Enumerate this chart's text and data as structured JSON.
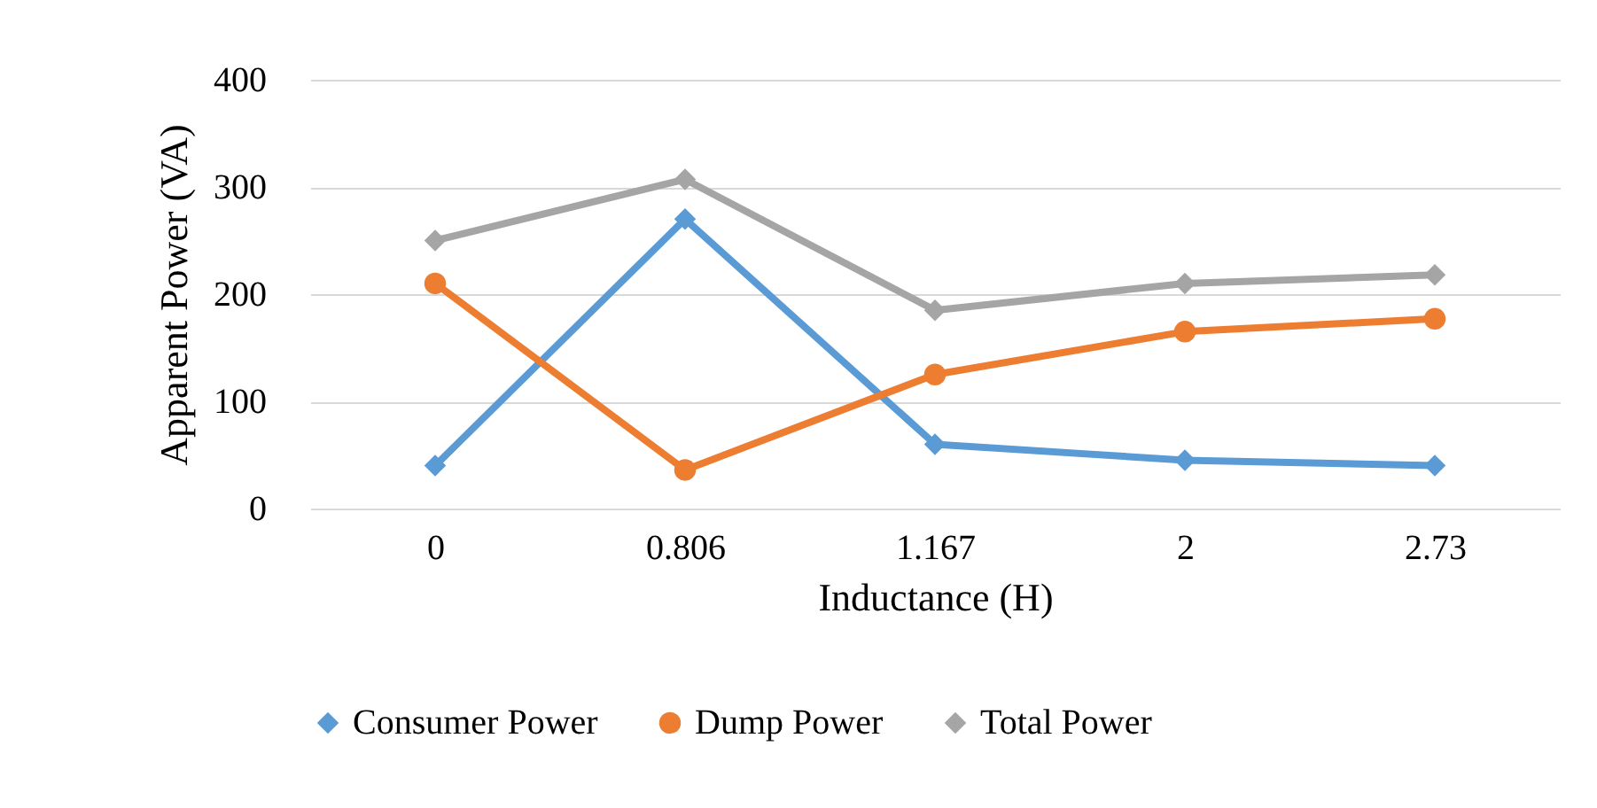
{
  "chart_data": {
    "type": "line",
    "xlabel": "Inductance (H)",
    "ylabel": "Apparent Power (VA)",
    "categories": [
      "0",
      "0.806",
      "1.167",
      "2",
      "2.73"
    ],
    "series": [
      {
        "name": "Consumer Power",
        "color": "#5b9bd5",
        "marker": "diamond",
        "values": [
          40,
          270,
          60,
          45,
          40
        ]
      },
      {
        "name": "Dump Power",
        "color": "#ed7d31",
        "marker": "circle",
        "values": [
          210,
          36,
          125,
          165,
          177
        ]
      },
      {
        "name": "Total Power",
        "color": "#a5a5a5",
        "marker": "diamond",
        "values": [
          250,
          307,
          185,
          210,
          218
        ]
      }
    ],
    "ylim": [
      0,
      400
    ],
    "yticks": [
      0,
      100,
      200,
      300,
      400
    ],
    "grid": "y",
    "legend": "bottom",
    "line_style": "solid"
  }
}
